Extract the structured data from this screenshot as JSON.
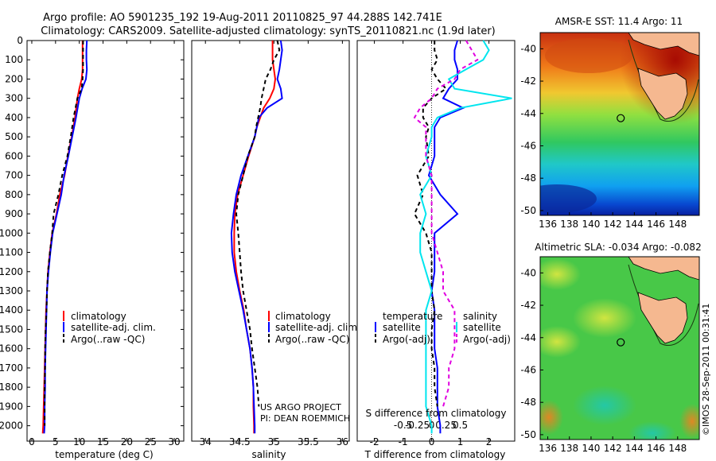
{
  "title": {
    "line1": "Argo profile: AO 5901235_192 19-Aug-2011 20110825_97 44.288S 142.741E",
    "line2": "Climatology: CARS2009. Satellite-adjusted climatology: synTS_20110821.nc (1.9d later)"
  },
  "colors": {
    "climatology": "#ff0000",
    "satellite": "#0000ff",
    "argo": "#000000",
    "satellite_s": "#00e5ee",
    "argo_s": "#e000e0"
  },
  "depth_axis": {
    "ticks": [
      0,
      100,
      200,
      300,
      400,
      500,
      600,
      700,
      800,
      900,
      1000,
      1100,
      1200,
      1300,
      1400,
      1500,
      1600,
      1700,
      1800,
      1900,
      2000
    ],
    "range": [
      0,
      2080
    ]
  },
  "chart_data": [
    {
      "type": "line",
      "xlabel": "temperature (deg C)",
      "xlim": [
        -1,
        32
      ],
      "xticks": [
        0,
        5,
        10,
        15,
        20,
        25,
        30
      ],
      "legend": [
        "climatology",
        "satellite-adj. clim.",
        "Argo(..raw -QC)"
      ],
      "legend_position": "bottom-center",
      "depth": [
        0,
        50,
        100,
        150,
        200,
        250,
        300,
        400,
        500,
        600,
        700,
        800,
        900,
        1000,
        1100,
        1200,
        1300,
        1400,
        1500,
        1600,
        1700,
        1800,
        1900,
        2000,
        2040
      ],
      "series": [
        {
          "name": "climatology",
          "values": [
            10.7,
            10.7,
            10.7,
            10.7,
            10.5,
            10.0,
            9.6,
            9.1,
            8.4,
            7.6,
            6.9,
            5.9,
            5.2,
            4.3,
            3.8,
            3.4,
            3.2,
            3.0,
            2.9,
            2.8,
            2.7,
            2.6,
            2.5,
            2.4,
            2.3
          ]
        },
        {
          "name": "satellite-adj. clim.",
          "values": [
            11.6,
            11.5,
            11.5,
            11.6,
            11.4,
            10.6,
            10.0,
            9.3,
            8.5,
            7.7,
            6.8,
            6.2,
            5.3,
            4.4,
            3.9,
            3.5,
            3.2,
            3.1,
            3.0,
            2.9,
            2.8,
            2.8,
            2.7,
            2.7,
            2.6
          ]
        },
        {
          "name": "Argo(..raw -QC)",
          "values": [
            10.8,
            10.8,
            10.8,
            10.8,
            10.7,
            10.5,
            9.6,
            8.8,
            8.2,
            7.5,
            6.4,
            5.6,
            4.6,
            4.3,
            3.8,
            3.4,
            3.2,
            3.1,
            2.9,
            2.8,
            2.8,
            2.7,
            2.7,
            2.7,
            null
          ]
        }
      ]
    },
    {
      "type": "line",
      "xlabel": "salinity",
      "xlim": [
        33.8,
        36.1
      ],
      "xticks": [
        34,
        34.5,
        35,
        35.5,
        36
      ],
      "legend": [
        "climatology",
        "satellite-adj. clim.",
        "Argo(..raw -QC)"
      ],
      "legend_position": "bottom-right",
      "annotation": [
        "US ARGO PROJECT",
        "PI: DEAN ROEMMICH"
      ],
      "depth": [
        0,
        50,
        100,
        150,
        200,
        250,
        300,
        350,
        400,
        450,
        500,
        600,
        700,
        800,
        900,
        1000,
        1100,
        1200,
        1300,
        1400,
        1500,
        1600,
        1700,
        1800,
        1900,
        2000,
        2040
      ],
      "series": [
        {
          "name": "climatology",
          "values": [
            34.98,
            34.98,
            34.98,
            35.0,
            35.02,
            35.0,
            34.94,
            34.85,
            34.8,
            34.75,
            34.72,
            34.63,
            34.55,
            34.47,
            34.43,
            34.42,
            34.42,
            34.45,
            34.5,
            34.56,
            34.6,
            34.65,
            34.68,
            34.7,
            34.7,
            34.71,
            34.71
          ]
        },
        {
          "name": "satellite-adj. clim.",
          "values": [
            35.1,
            35.12,
            35.1,
            35.08,
            35.05,
            35.1,
            35.12,
            34.9,
            34.78,
            34.75,
            34.72,
            34.62,
            34.52,
            34.45,
            34.41,
            34.38,
            34.39,
            34.43,
            34.49,
            34.55,
            34.6,
            34.65,
            34.68,
            34.7,
            34.71,
            34.72,
            34.72
          ]
        },
        {
          "name": "Argo(..raw -QC)",
          "values": [
            35.05,
            35.08,
            35.0,
            34.95,
            34.88,
            34.85,
            34.82,
            34.8,
            34.77,
            34.74,
            34.72,
            34.62,
            34.55,
            34.48,
            34.45,
            34.48,
            34.5,
            34.52,
            34.55,
            34.6,
            34.65,
            34.68,
            34.72,
            34.76,
            34.78,
            null,
            null
          ]
        }
      ]
    },
    {
      "type": "line",
      "xlabel": "T difference from climatology",
      "xlim": [
        -2.6,
        2.9
      ],
      "xticks": [
        -2,
        -1,
        0,
        1,
        2
      ],
      "x2label": "S difference from climatology",
      "x2ticks": [
        "-0.5",
        "-0.25",
        "0",
        "0.25",
        "0.5"
      ],
      "legend": {
        "temperature": [
          "temperature",
          "satellite",
          "Argo(-adj)"
        ],
        "salinity": [
          "salinity",
          "satellite",
          "Argo(-adj)"
        ]
      },
      "depth": [
        0,
        50,
        100,
        150,
        200,
        250,
        300,
        350,
        400,
        450,
        500,
        600,
        700,
        800,
        900,
        1000,
        1100,
        1200,
        1300,
        1400,
        1500,
        1600,
        1700,
        1800,
        1900,
        2000,
        2040
      ],
      "series": [
        {
          "name": "temperature satellite",
          "values": [
            0.9,
            0.8,
            0.8,
            0.9,
            0.9,
            0.6,
            0.4,
            1.1,
            0.3,
            0.1,
            0.1,
            0.1,
            -0.1,
            0.3,
            0.9,
            0.1,
            0.1,
            0.1,
            0.0,
            0.1,
            0.1,
            0.1,
            0.2,
            0.2,
            0.2,
            0.3,
            0.3
          ]
        },
        {
          "name": "temperature Argo(-adj)",
          "values": [
            0.1,
            0.1,
            0.2,
            0.0,
            0.2,
            0.5,
            0.0,
            -0.3,
            -0.3,
            -0.1,
            -0.2,
            -0.1,
            -0.5,
            -0.3,
            -0.6,
            -0.2,
            0.0,
            0.0,
            0.0,
            0.1,
            0.0,
            0.0,
            0.1,
            0.1,
            0.2,
            null,
            null
          ]
        },
        {
          "name": "salinity satellite",
          "values": [
            0.45,
            0.5,
            0.45,
            0.3,
            0.15,
            0.2,
            0.7,
            0.25,
            0.05,
            0.0,
            0.0,
            -0.05,
            0.0,
            -0.1,
            -0.05,
            -0.1,
            -0.1,
            -0.05,
            0.0,
            -0.05,
            -0.05,
            -0.05,
            -0.05,
            -0.05,
            -0.05,
            0.0,
            0.0
          ]
        },
        {
          "name": "salinity Argo(-adj)",
          "values": [
            0.3,
            0.35,
            0.4,
            0.25,
            0.2,
            0.05,
            0.0,
            -0.1,
            -0.15,
            -0.05,
            -0.05,
            -0.05,
            0.0,
            0.0,
            0.0,
            0.0,
            0.05,
            0.1,
            0.1,
            0.2,
            0.2,
            0.2,
            0.15,
            0.15,
            0.1,
            null,
            null
          ]
        }
      ]
    },
    {
      "type": "heatmap",
      "title": "AMSR-E SST: 11.4  Argo: 11",
      "xticks": [
        136,
        138,
        140,
        142,
        144,
        146,
        148
      ],
      "yticks": [
        -40,
        -42,
        -44,
        -46,
        -48,
        -50
      ],
      "marker": {
        "lon": 142.74,
        "lat": -44.29
      }
    },
    {
      "type": "heatmap",
      "title": "Altimetric SLA: -0.034  Argo: -0.082",
      "xticks": [
        136,
        138,
        140,
        142,
        144,
        146,
        148
      ],
      "yticks": [
        -40,
        -42,
        -44,
        -46,
        -48,
        -50
      ],
      "marker": {
        "lon": 142.74,
        "lat": -44.29
      }
    }
  ],
  "watermark": "©IMOS 28-Sep-2011 00:31:41"
}
